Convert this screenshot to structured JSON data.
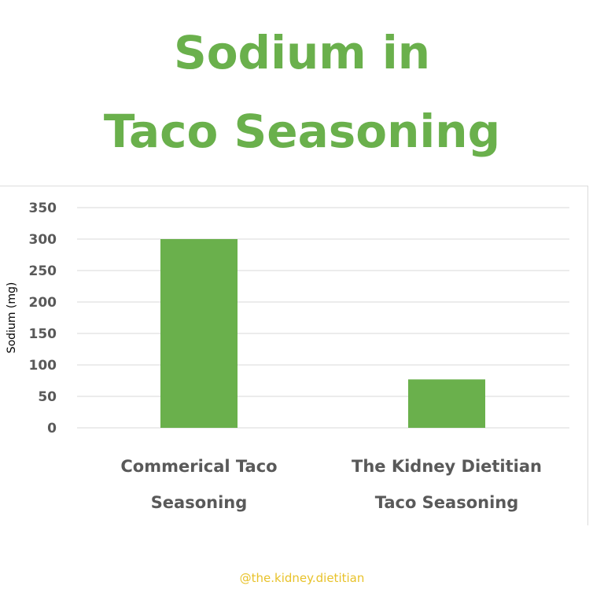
{
  "title_lines": [
    "Sodium in",
    "Taco Seasoning"
  ],
  "watermark": "@the.kidney.dietitian",
  "colors": {
    "title": "#6ab04c",
    "bar": "#6ab04c",
    "axis_text": "#595959",
    "grid": "#d9d9d9",
    "watermark": "#e8c22a"
  },
  "chart_data": {
    "type": "bar",
    "title": "Sodium in Taco Seasoning",
    "ylabel": "Sodium (mg)",
    "xlabel": "",
    "ylim": [
      0,
      350
    ],
    "yticks": [
      0,
      50,
      100,
      150,
      200,
      250,
      300,
      350
    ],
    "grid": true,
    "categories": [
      [
        "Commerical Taco",
        "Seasoning"
      ],
      [
        "The Kidney Dietitian",
        "Taco Seasoning"
      ]
    ],
    "values": [
      300,
      77
    ]
  }
}
